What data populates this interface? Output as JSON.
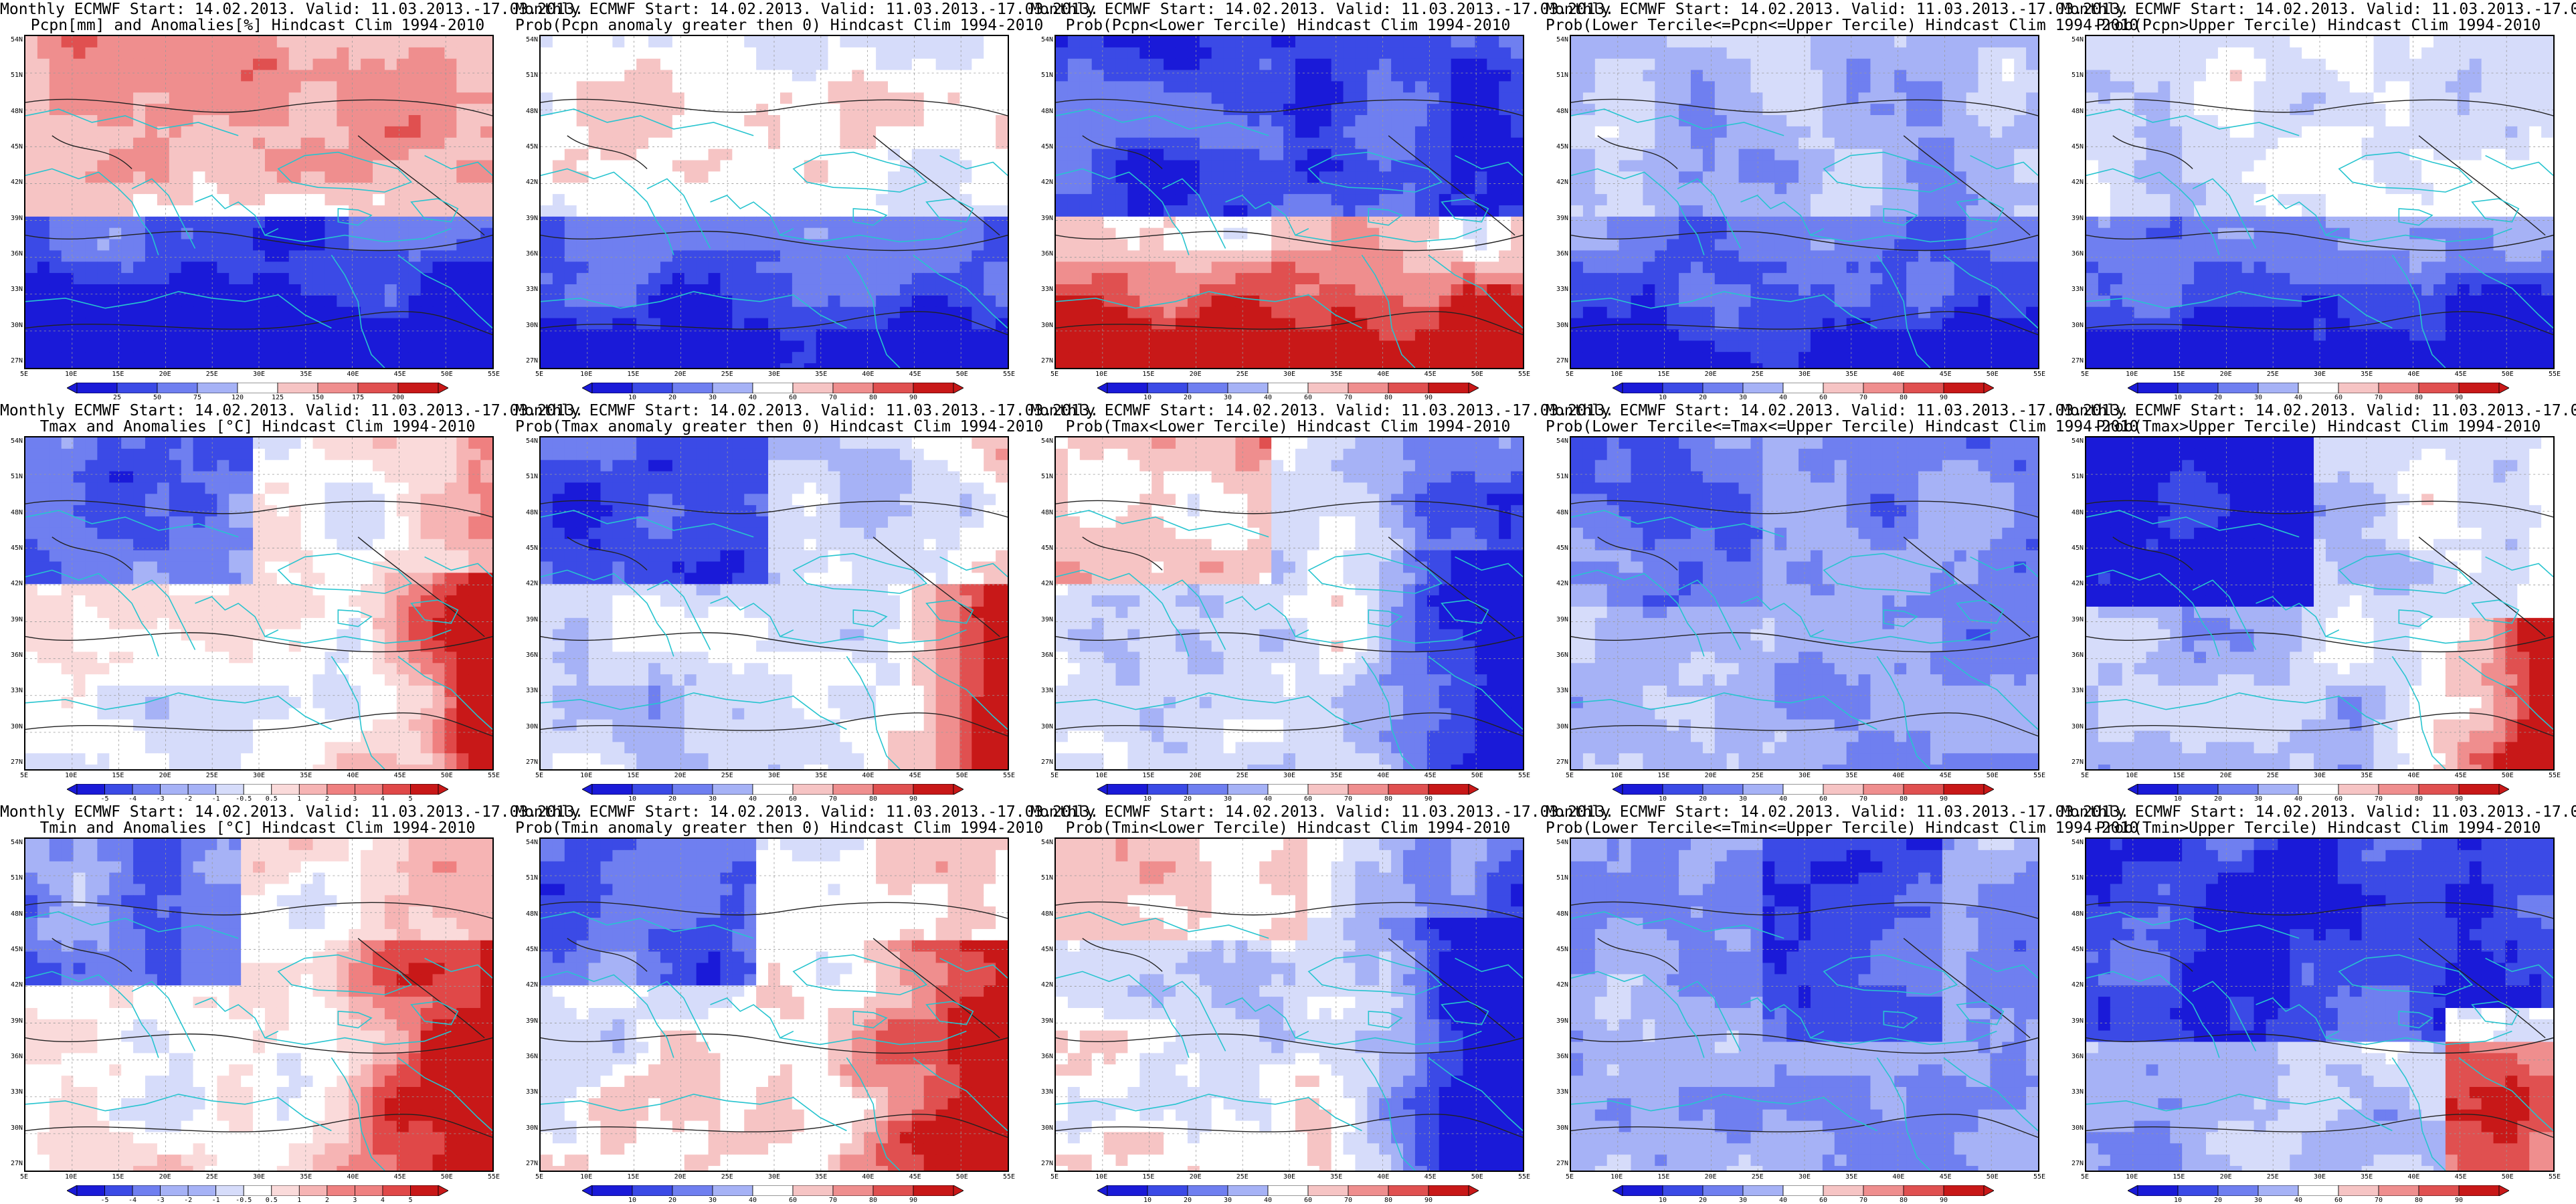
{
  "header_line": "Monthly ECMWF Start: 14.02.2013. Valid: 11.03.2013.-17.03.2013.",
  "lat_labels": [
    "54N",
    "51N",
    "48N",
    "45N",
    "42N",
    "39N",
    "36N",
    "33N",
    "30N",
    "27N"
  ],
  "lon_labels": [
    "5E",
    "10E",
    "15E",
    "20E",
    "25E",
    "30E",
    "35E",
    "40E",
    "45E",
    "50E",
    "55E"
  ],
  "colorbars": {
    "precip": [
      "25",
      "50",
      "75",
      "120",
      "125",
      "150",
      "175",
      "200"
    ],
    "temp": [
      "-5",
      "-4",
      "-3",
      "-2",
      "-1",
      "-0.5",
      "0.5",
      "1",
      "2",
      "3",
      "4",
      "5"
    ],
    "prob": [
      "10",
      "20",
      "30",
      "40",
      "60",
      "70",
      "80",
      "90"
    ]
  },
  "panels": [
    {
      "title": "Pcpn[mm] and Anomalies[%] Hindcast Clim 1994-2010",
      "pattern": "pcpn_anom",
      "cbar": "precip"
    },
    {
      "title": "Prob(Pcpn anomaly greater then 0) Hindcast Clim 1994-2010",
      "pattern": "pcpn_gt0",
      "cbar": "prob"
    },
    {
      "title": "Prob(Pcpn<Lower Tercile) Hindcast Clim 1994-2010",
      "pattern": "pcpn_lower",
      "cbar": "prob"
    },
    {
      "title": "Prob(Lower Tercile<=Pcpn<=Upper Tercile) Hindcast Clim 1994-2010",
      "pattern": "pcpn_mid",
      "cbar": "prob"
    },
    {
      "title": "Prob(Pcpn>Upper Tercile) Hindcast Clim 1994-2010",
      "pattern": "pcpn_upper",
      "cbar": "prob"
    },
    {
      "title": "Tmax and Anomalies [°C] Hindcast Clim 1994-2010",
      "pattern": "tmax_anom",
      "cbar": "temp"
    },
    {
      "title": "Prob(Tmax anomaly greater then 0) Hindcast Clim 1994-2010",
      "pattern": "tmax_gt0",
      "cbar": "prob"
    },
    {
      "title": "Prob(Tmax<Lower Tercile) Hindcast Clim 1994-2010",
      "pattern": "tmax_lower",
      "cbar": "prob"
    },
    {
      "title": "Prob(Lower Tercile<=Tmax<=Upper Tercile) Hindcast Clim 1994-2010",
      "pattern": "tmax_mid",
      "cbar": "prob"
    },
    {
      "title": "Prob(Tmax>Upper Tercile) Hindcast Clim 1994-2010",
      "pattern": "tmax_upper",
      "cbar": "prob"
    },
    {
      "title": "Tmin and Anomalies [°C] Hindcast Clim 1994-2010",
      "pattern": "tmin_anom",
      "cbar": "temp"
    },
    {
      "title": "Prob(Tmin anomaly greater then 0) Hindcast Clim 1994-2010",
      "pattern": "tmin_gt0",
      "cbar": "prob"
    },
    {
      "title": "Prob(Tmin<Lower Tercile) Hindcast Clim 1994-2010",
      "pattern": "tmin_lower",
      "cbar": "prob"
    },
    {
      "title": "Prob(Lower Tercile<=Tmin<=Upper Tercile) Hindcast Clim 1994-2010",
      "pattern": "tmin_mid",
      "cbar": "prob"
    },
    {
      "title": "Prob(Tmin>Upper Tercile) Hindcast Clim 1994-2010",
      "pattern": "tmin_upper",
      "cbar": "prob"
    }
  ],
  "colors": {
    "coast": "#27c4cf",
    "contour": "#222222",
    "precip_scale": [
      "#e62020",
      "#f28080",
      "#f7c0c0",
      "#ffffff",
      "#c0c8f2",
      "#8090e8",
      "#3040d0",
      "#1020a0"
    ],
    "prob_scale": [
      "#1a1ad8",
      "#3b4ae6",
      "#6f7ff0",
      "#a6b2f6",
      "#d6dcfa",
      "#ffffff",
      "#f6c4c4",
      "#ef8e8e",
      "#e05050",
      "#c81818"
    ],
    "temp_scale": [
      "#1a1ad8",
      "#3b4ae6",
      "#6f7ff0",
      "#a6b2f6",
      "#d6dcfa",
      "#ffffff",
      "#fadada",
      "#f6b4b4",
      "#ef8080",
      "#e04848",
      "#c81818"
    ]
  }
}
